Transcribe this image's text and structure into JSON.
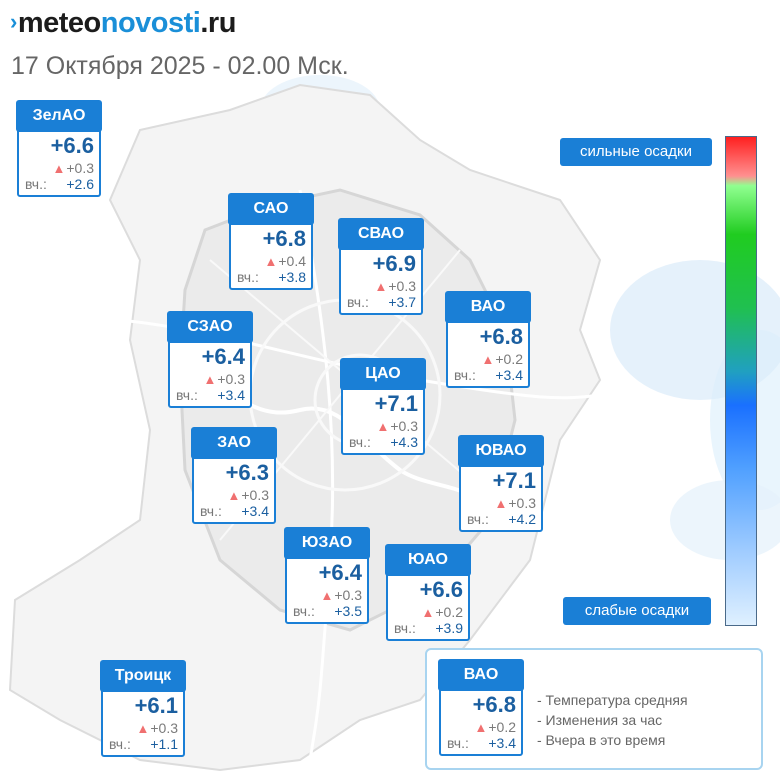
{
  "header": {
    "logo_mark": "›",
    "logo_part1": "meteo",
    "logo_part2": "novosti",
    "logo_part3": ".ru",
    "subtitle": "17 Октября 2025 - 02.00 Мск."
  },
  "yesterday_label": "вч.:",
  "districts": [
    {
      "name": "ЗелАО",
      "temp": "+6.6",
      "change": "+0.3",
      "yesterday": "+2.6"
    },
    {
      "name": "САО",
      "temp": "+6.8",
      "change": "+0.4",
      "yesterday": "+3.8"
    },
    {
      "name": "СВАО",
      "temp": "+6.9",
      "change": "+0.3",
      "yesterday": "+3.7"
    },
    {
      "name": "СЗАО",
      "temp": "+6.4",
      "change": "+0.3",
      "yesterday": "+3.4"
    },
    {
      "name": "ВАО",
      "temp": "+6.8",
      "change": "+0.2",
      "yesterday": "+3.4"
    },
    {
      "name": "ЦАО",
      "temp": "+7.1",
      "change": "+0.3",
      "yesterday": "+4.3"
    },
    {
      "name": "ЗАО",
      "temp": "+6.3",
      "change": "+0.3",
      "yesterday": "+3.4"
    },
    {
      "name": "ЮВАО",
      "temp": "+7.1",
      "change": "+0.3",
      "yesterday": "+4.2"
    },
    {
      "name": "ЮЗАО",
      "temp": "+6.4",
      "change": "+0.3",
      "yesterday": "+3.5"
    },
    {
      "name": "ЮАО",
      "temp": "+6.6",
      "change": "+0.2",
      "yesterday": "+3.9"
    },
    {
      "name": "Троицк",
      "temp": "+6.1",
      "change": "+0.3",
      "yesterday": "+1.1"
    }
  ],
  "precipitation_scale": {
    "top_label": "сильные осадки",
    "bottom_label": "слабые осадки",
    "colors": [
      "#ff2020",
      "#20cc20",
      "#1a70ff",
      "#dff0ff"
    ]
  },
  "legend": {
    "example": {
      "name": "ВАО",
      "temp": "+6.8",
      "change": "+0.2",
      "yesterday": "+3.4"
    },
    "items": [
      "- Температура средняя",
      "- Изменения за час",
      "- Вчера в это время"
    ]
  },
  "colors": {
    "accent": "#1a7fd6",
    "temperature_text": "#1b5fa0",
    "rise_indicator": "#f07070"
  }
}
